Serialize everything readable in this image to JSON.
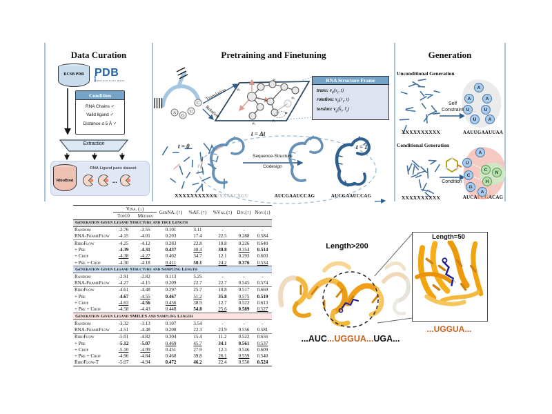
{
  "curation": {
    "title": "Data Curation",
    "db_label": "RCSB PDB",
    "pdb_logo": {
      "rcsb": "RCSB",
      "pdb": "PDB",
      "tagline": "PROTEIN DATA BANK"
    },
    "condition": {
      "header": "Condition",
      "items": [
        "RNA Chains ✓",
        "Valid ligand ✓",
        "Distance ≤ 5 Å ✓"
      ]
    },
    "extraction": "Extraction",
    "ribobind": "RiboBind",
    "dataset_label": "RNA-Ligand pairs dataset",
    "ellipsis": "..."
  },
  "pretrain": {
    "title": "Pretraining and Finetuning",
    "translation": "Translation",
    "rotation": "Rotation",
    "nucleotides": [
      "A",
      "G",
      "U",
      "C"
    ],
    "phi_labels": [
      "φ₅",
      "φ₂",
      "φ₃",
      "φ₄",
      "φ₁"
    ],
    "frame": {
      "header": "RNA Structure Frame",
      "eq": [
        {
          "pre": "trans: ",
          "v": "ν",
          "vsub": "θ",
          "a1": "(x",
          "s1": "t",
          "a2": ", t)",
          "s2": "",
          "a3": ""
        },
        {
          "pre": "rotation: ",
          "v": "ν",
          "vsub": "θ",
          "a1": "(r",
          "s1": "t",
          "a2": ", t)",
          "s2": "",
          "a3": ""
        },
        {
          "pre": "torsion: ",
          "v": "ν",
          "vsub": "φ",
          "a1": "(k̂",
          "s1": "t",
          "a2": ", r̂",
          "s2": "t",
          "a3": ")"
        }
      ]
    },
    "t0": "t = 0",
    "tdt": "t = Δt",
    "t1": "t = 1",
    "codesign_line1": "Sequence-Structure",
    "codesign_line2": "Codesign",
    "seq_x": "XXXXXXXXXXX",
    "seq_noisy": "AXUXXAXCXGU",
    "seq_mid": "AUCGAAUCCAG",
    "seq_final": "AUCGAAUCCAG"
  },
  "generation": {
    "title": "Generation",
    "uncond": {
      "heading": "Unconditional Generation",
      "seq_x": "XXXXXXXXXX",
      "arrow_label1": "Self",
      "arrow_label2": "Constraint",
      "letters": [
        "A",
        "A",
        "A",
        "U",
        "U",
        "U",
        "A"
      ],
      "result": "AAUUGAAUUAA"
    },
    "cond": {
      "heading": "Conditional Generation",
      "seq_x": "XXXXXXXXXX",
      "arrow_label": "Condition",
      "letters_blue": [
        "A",
        "U",
        "C",
        "G",
        "A"
      ],
      "letters_green": [
        "C",
        "N",
        "H"
      ],
      "result_parts": [
        {
          "text": "AUCA",
          "color": "#111111"
        },
        {
          "text": "UCG",
          "color": "#cc6420"
        },
        {
          "text": "ACAG",
          "color": "#111111"
        }
      ]
    }
  },
  "table": {
    "group_header": "Vina. (↓)",
    "columns": [
      "Top10",
      "Median",
      "GerNA. (↑)",
      "%AF. (↑)",
      "%Val.(↑)",
      "Div.(↑)",
      "Nov.(↓)"
    ],
    "sections": [
      {
        "header": "Generation Given Ligand Structure and true Length",
        "band": "#dcdcdc",
        "groups": [
          [
            {
              "m": "Random",
              "v": [
                "-2.76",
                "-2.55",
                "0.101",
                "3.11",
                "-",
                "-",
                "-"
              ],
              "s": [
                "",
                "",
                "",
                "",
                "",
                "",
                ""
              ]
            },
            {
              "m": "RNA-FrameFlow",
              "v": [
                "-4.15",
                "-4.01",
                "0.203",
                "17.4",
                "22.5",
                "0.288",
                "0.584"
              ],
              "s": [
                "",
                "",
                "",
                "",
                "",
                "",
                ""
              ]
            }
          ],
          [
            {
              "m": "RiboFlow",
              "v": [
                "-4.25",
                "-4.12",
                "0.283",
                "22.8",
                "10.8",
                "0.226",
                "0.640"
              ],
              "s": [
                "",
                "",
                "",
                "",
                "",
                "",
                ""
              ]
            },
            {
              "m": "+ Pre",
              "v": [
                "-4.39",
                "-4.31",
                "0.437",
                "48.4",
                "30.8",
                "0.354",
                "0.514"
              ],
              "s": [
                "b",
                "b",
                "b",
                "u",
                "b",
                "u",
                "b"
              ]
            },
            {
              "m": "+ Crop",
              "v": [
                "-4.38",
                "-4.27",
                "0.402",
                "34.7",
                "12.1",
                "0.293",
                "0.603"
              ],
              "s": [
                "u",
                "u",
                "",
                "",
                "",
                "",
                ""
              ]
            },
            {
              "m": "+ Pre + Crop",
              "v": [
                "-4.30",
                "-4.18",
                "0.411",
                "50.1",
                "24.2",
                "0.376",
                "0.534"
              ],
              "s": [
                "",
                "",
                "u",
                "b",
                "u",
                "b",
                "u"
              ]
            }
          ]
        ]
      },
      {
        "header": "Generation Given Ligand Structure and Sampling Length",
        "band": "#cfe2f3",
        "groups": [
          [
            {
              "m": "Random",
              "v": [
                "-2.91",
                "-2.82",
                "0.113",
                "5.25",
                "-",
                "-",
                "-"
              ],
              "s": [
                "",
                "",
                "",
                "",
                "",
                "",
                ""
              ]
            },
            {
              "m": "RNA-FrameFlow",
              "v": [
                "-4.27",
                "-4.15",
                "0.209",
                "22.7",
                "22.7",
                "0.545",
                "0.574"
              ],
              "s": [
                "",
                "",
                "",
                "",
                "",
                "",
                ""
              ]
            }
          ],
          [
            {
              "m": "RiboFlow",
              "v": [
                "-4.61",
                "-4.48",
                "0.297",
                "25.7",
                "10.8",
                "0.517",
                "0.669"
              ],
              "s": [
                "",
                "",
                "",
                "",
                "",
                "",
                ""
              ]
            },
            {
              "m": "+ Pre",
              "v": [
                "-4.67",
                "-4.55",
                "0.467",
                "51.2",
                "35.8",
                "0.575",
                "0.519"
              ],
              "s": [
                "b",
                "u",
                "b",
                "u",
                "b",
                "u",
                "b"
              ]
            },
            {
              "m": "+ Crop",
              "v": [
                "-4.63",
                "-4.56",
                "0.456",
                "38.9",
                "12.7",
                "0.522",
                "0.613"
              ],
              "s": [
                "u",
                "b",
                "u",
                "",
                "",
                "",
                ""
              ]
            },
            {
              "m": "+ Pre + Crop",
              "v": [
                "-4.58",
                "-4.43",
                "0.448",
                "54.8",
                "25.6",
                "0.589",
                "0.527"
              ],
              "s": [
                "",
                "",
                "",
                "b",
                "u",
                "b",
                "u"
              ]
            }
          ]
        ]
      },
      {
        "header": "Generation Given Ligand SMILES and Sampling Length",
        "band": "#fbe3e3",
        "groups": [
          [
            {
              "m": "Random",
              "v": [
                "-3.32",
                "-3.13",
                "0.107",
                "3.54",
                "-",
                "-",
                "-"
              ],
              "s": [
                "",
                "",
                "",
                "",
                "",
                "",
                ""
              ]
            },
            {
              "m": "RNA-FrameFlow",
              "v": [
                "-4.51",
                "-4.48",
                "0.200",
                "22.3",
                "23.9",
                "0.556",
                "0.581"
              ],
              "s": [
                "",
                "",
                "",
                "",
                "",
                "",
                ""
              ]
            }
          ],
          [
            {
              "m": "RiboFlow",
              "v": [
                "-5.01",
                "-4.82",
                "0.304",
                "15.4",
                "11.2",
                "0.522",
                "0.656"
              ],
              "s": [
                "",
                "",
                "",
                "",
                "",
                "",
                ""
              ]
            },
            {
              "m": "+ Pre",
              "v": [
                "-5.12",
                "-5.07",
                "0.469",
                "45.7",
                "34.1",
                "0.561",
                "0.537"
              ],
              "s": [
                "b",
                "b",
                "u",
                "u",
                "b",
                "b",
                "u"
              ]
            },
            {
              "m": "+ Crop",
              "v": [
                "-5.10",
                "-4.99",
                "0.451",
                "27.9",
                "12.3",
                "0.546",
                "0.609"
              ],
              "s": [
                "u",
                "u",
                "",
                "",
                "",
                "",
                ""
              ]
            },
            {
              "m": "+ Pre + Crop",
              "v": [
                "-4.96",
                "-4.84",
                "0.460",
                "39.8",
                "26.1",
                "0.559",
                "0.540"
              ],
              "s": [
                "",
                "",
                "",
                "",
                "u",
                "u",
                ""
              ]
            },
            {
              "m": "RiboFlow-T",
              "v": [
                "-5.07",
                "-4.94",
                "0.472",
                "46.2",
                "22.4",
                "0.550",
                "0.524"
              ],
              "s": [
                "",
                "",
                "b",
                "b",
                "",
                "",
                "b"
              ]
            }
          ]
        ]
      }
    ]
  },
  "figure": {
    "label_big": "Length>200",
    "label_small": "Length=50",
    "seq_parts": [
      {
        "text": "...AUC",
        "color": "#111111"
      },
      {
        "text": "...UGGUA...",
        "color": "#cc6420"
      },
      {
        "text": "UGA...",
        "color": "#111111"
      }
    ],
    "seq_small": "...UGGUA..."
  },
  "colors": {
    "steel_header": "#74a3c7",
    "orange_accent": "#cc6420",
    "rna_blue": "#3f6f9e",
    "salmon": "#e6b1a6",
    "band_gray": "#dcdcdc",
    "band_blue": "#cfe2f3",
    "band_pink": "#fbe3e3"
  }
}
